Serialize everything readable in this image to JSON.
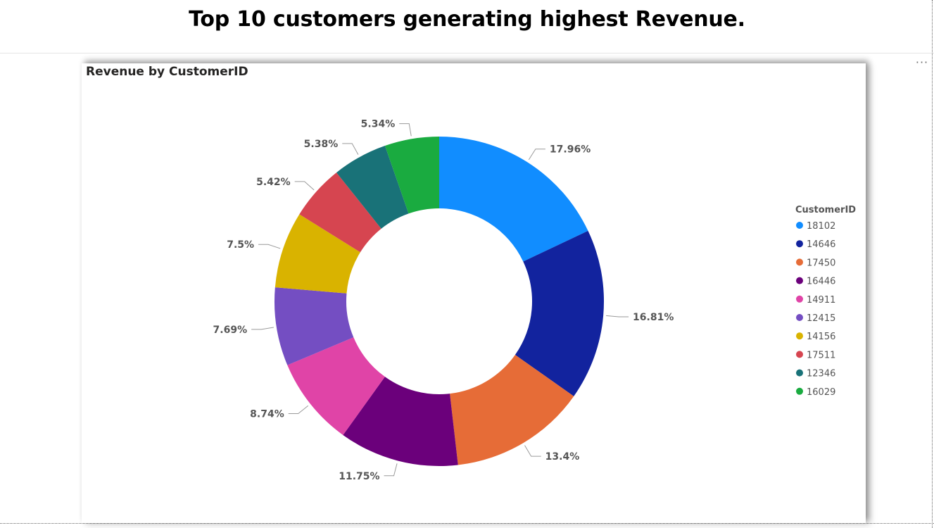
{
  "page": {
    "title": "Top 10 customers generating highest Revenue.",
    "more_options": "···"
  },
  "chart_data": {
    "type": "pie",
    "variant": "donut",
    "title": "Revenue by CustomerID",
    "legend_title": "CustomerID",
    "legend_position": "right",
    "categories": [
      "18102",
      "14646",
      "17450",
      "16446",
      "14911",
      "12415",
      "14156",
      "17511",
      "12346",
      "16029"
    ],
    "values": [
      17.96,
      16.81,
      13.4,
      11.75,
      8.74,
      7.69,
      7.5,
      5.42,
      5.38,
      5.34
    ],
    "labels": [
      "17.96%",
      "16.81%",
      "13.4%",
      "11.75%",
      "8.74%",
      "7.69%",
      "7.5%",
      "5.42%",
      "5.38%",
      "5.34%"
    ],
    "colors": [
      "#118DFF",
      "#12239E",
      "#E66C37",
      "#6B007B",
      "#E044A7",
      "#744EC2",
      "#D9B300",
      "#D64550",
      "#197278",
      "#1AAB40"
    ]
  }
}
